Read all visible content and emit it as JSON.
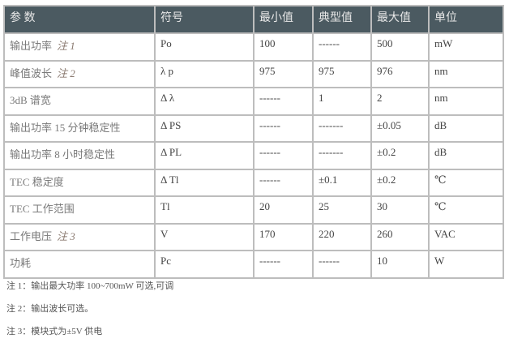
{
  "table": {
    "headers": [
      "参 数",
      "符号",
      "最小值",
      "典型值",
      "最大值",
      "单位"
    ],
    "rows": [
      {
        "param": "输出功率",
        "note": "注 1",
        "symbol": "Po",
        "min": "100",
        "typ": "------",
        "max": "500",
        "unit": "mW"
      },
      {
        "param": "峰值波长",
        "note": "注 2",
        "symbol": "λ p",
        "min": "975",
        "typ": "975",
        "max": "976",
        "unit": "nm"
      },
      {
        "param": "3dB 谱宽",
        "note": "",
        "symbol": "Δ λ",
        "min": "------",
        "typ": "1",
        "max": "2",
        "unit": "nm"
      },
      {
        "param": "输出功率 15 分钟稳定性",
        "note": "",
        "symbol": "Δ PS",
        "min": "------",
        "typ": "-------",
        "max": "±0.05",
        "unit": "dB"
      },
      {
        "param": "输出功率 8 小时稳定性",
        "note": "",
        "symbol": "Δ PL",
        "min": "------",
        "typ": "-------",
        "max": "±0.2",
        "unit": "dB"
      },
      {
        "param": "TEC 稳定度",
        "note": "",
        "symbol": "Δ Tl",
        "min": "------",
        "typ": "±0.1",
        "max": "±0.2",
        "unit": "℃"
      },
      {
        "param": "TEC 工作范围",
        "note": "",
        "symbol": "Tl",
        "min": "20",
        "typ": "25",
        "max": "30",
        "unit": "℃"
      },
      {
        "param": "工作电压",
        "note": "注 3",
        "symbol": "V",
        "min": "170",
        "typ": "220",
        "max": "260",
        "unit": "VAC"
      },
      {
        "param": "功耗",
        "note": "",
        "symbol": "Pc",
        "min": "------",
        "typ": "------",
        "max": "10",
        "unit": "W"
      }
    ]
  },
  "notes": [
    "注 1：输出最大功率 100~700mW 可选,可调",
    "注 2：输出波长可选。",
    "注 3：模块式为±5V 供电"
  ],
  "colors": {
    "header_bg": "#4b5a61",
    "border": "#bdbdbd"
  }
}
